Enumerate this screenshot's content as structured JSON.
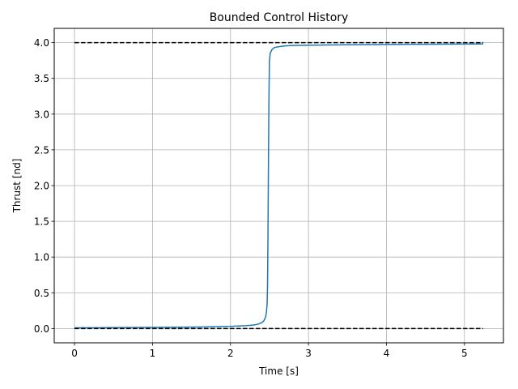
{
  "chart_data": {
    "type": "line",
    "title": "Bounded Control History",
    "xlabel": "Time [s]",
    "ylabel": "Thrust [nd]",
    "xlim": [
      -0.26,
      5.5
    ],
    "ylim": [
      -0.2,
      4.2
    ],
    "grid": true,
    "x_ticks": [
      0,
      1,
      2,
      3,
      4,
      5
    ],
    "x_tick_labels": [
      "0",
      "1",
      "2",
      "3",
      "4",
      "5"
    ],
    "y_ticks": [
      0.0,
      0.5,
      1.0,
      1.5,
      2.0,
      2.5,
      3.0,
      3.5,
      4.0
    ],
    "y_tick_labels": [
      "0.0",
      "0.5",
      "1.0",
      "1.5",
      "2.0",
      "2.5",
      "3.0",
      "3.5",
      "4.0"
    ],
    "series": [
      {
        "color": "#1f77b4",
        "style": "solid",
        "x": [
          0,
          0.5,
          1.0,
          1.5,
          1.8,
          2.0,
          2.1,
          2.2,
          2.3,
          2.35,
          2.4,
          2.43,
          2.45,
          2.46,
          2.47,
          2.475,
          2.48,
          2.485,
          2.49,
          2.495,
          2.5,
          2.51,
          2.53,
          2.56,
          2.6,
          2.7,
          2.8,
          3.0,
          3.5,
          4.0,
          4.5,
          5.0,
          5.24
        ],
        "y": [
          0.01,
          0.012,
          0.015,
          0.02,
          0.025,
          0.03,
          0.035,
          0.04,
          0.05,
          0.06,
          0.08,
          0.11,
          0.16,
          0.22,
          0.35,
          0.6,
          1.2,
          2.0,
          2.8,
          3.4,
          3.75,
          3.85,
          3.9,
          3.93,
          3.94,
          3.955,
          3.96,
          3.965,
          3.97,
          3.975,
          3.978,
          3.98,
          3.982
        ]
      },
      {
        "color": "#000000",
        "style": "dashed",
        "x": [
          0,
          5.24
        ],
        "y": [
          4.0,
          4.0
        ]
      },
      {
        "color": "#000000",
        "style": "dashed",
        "x": [
          0,
          5.24
        ],
        "y": [
          0.0,
          0.0
        ]
      }
    ]
  }
}
